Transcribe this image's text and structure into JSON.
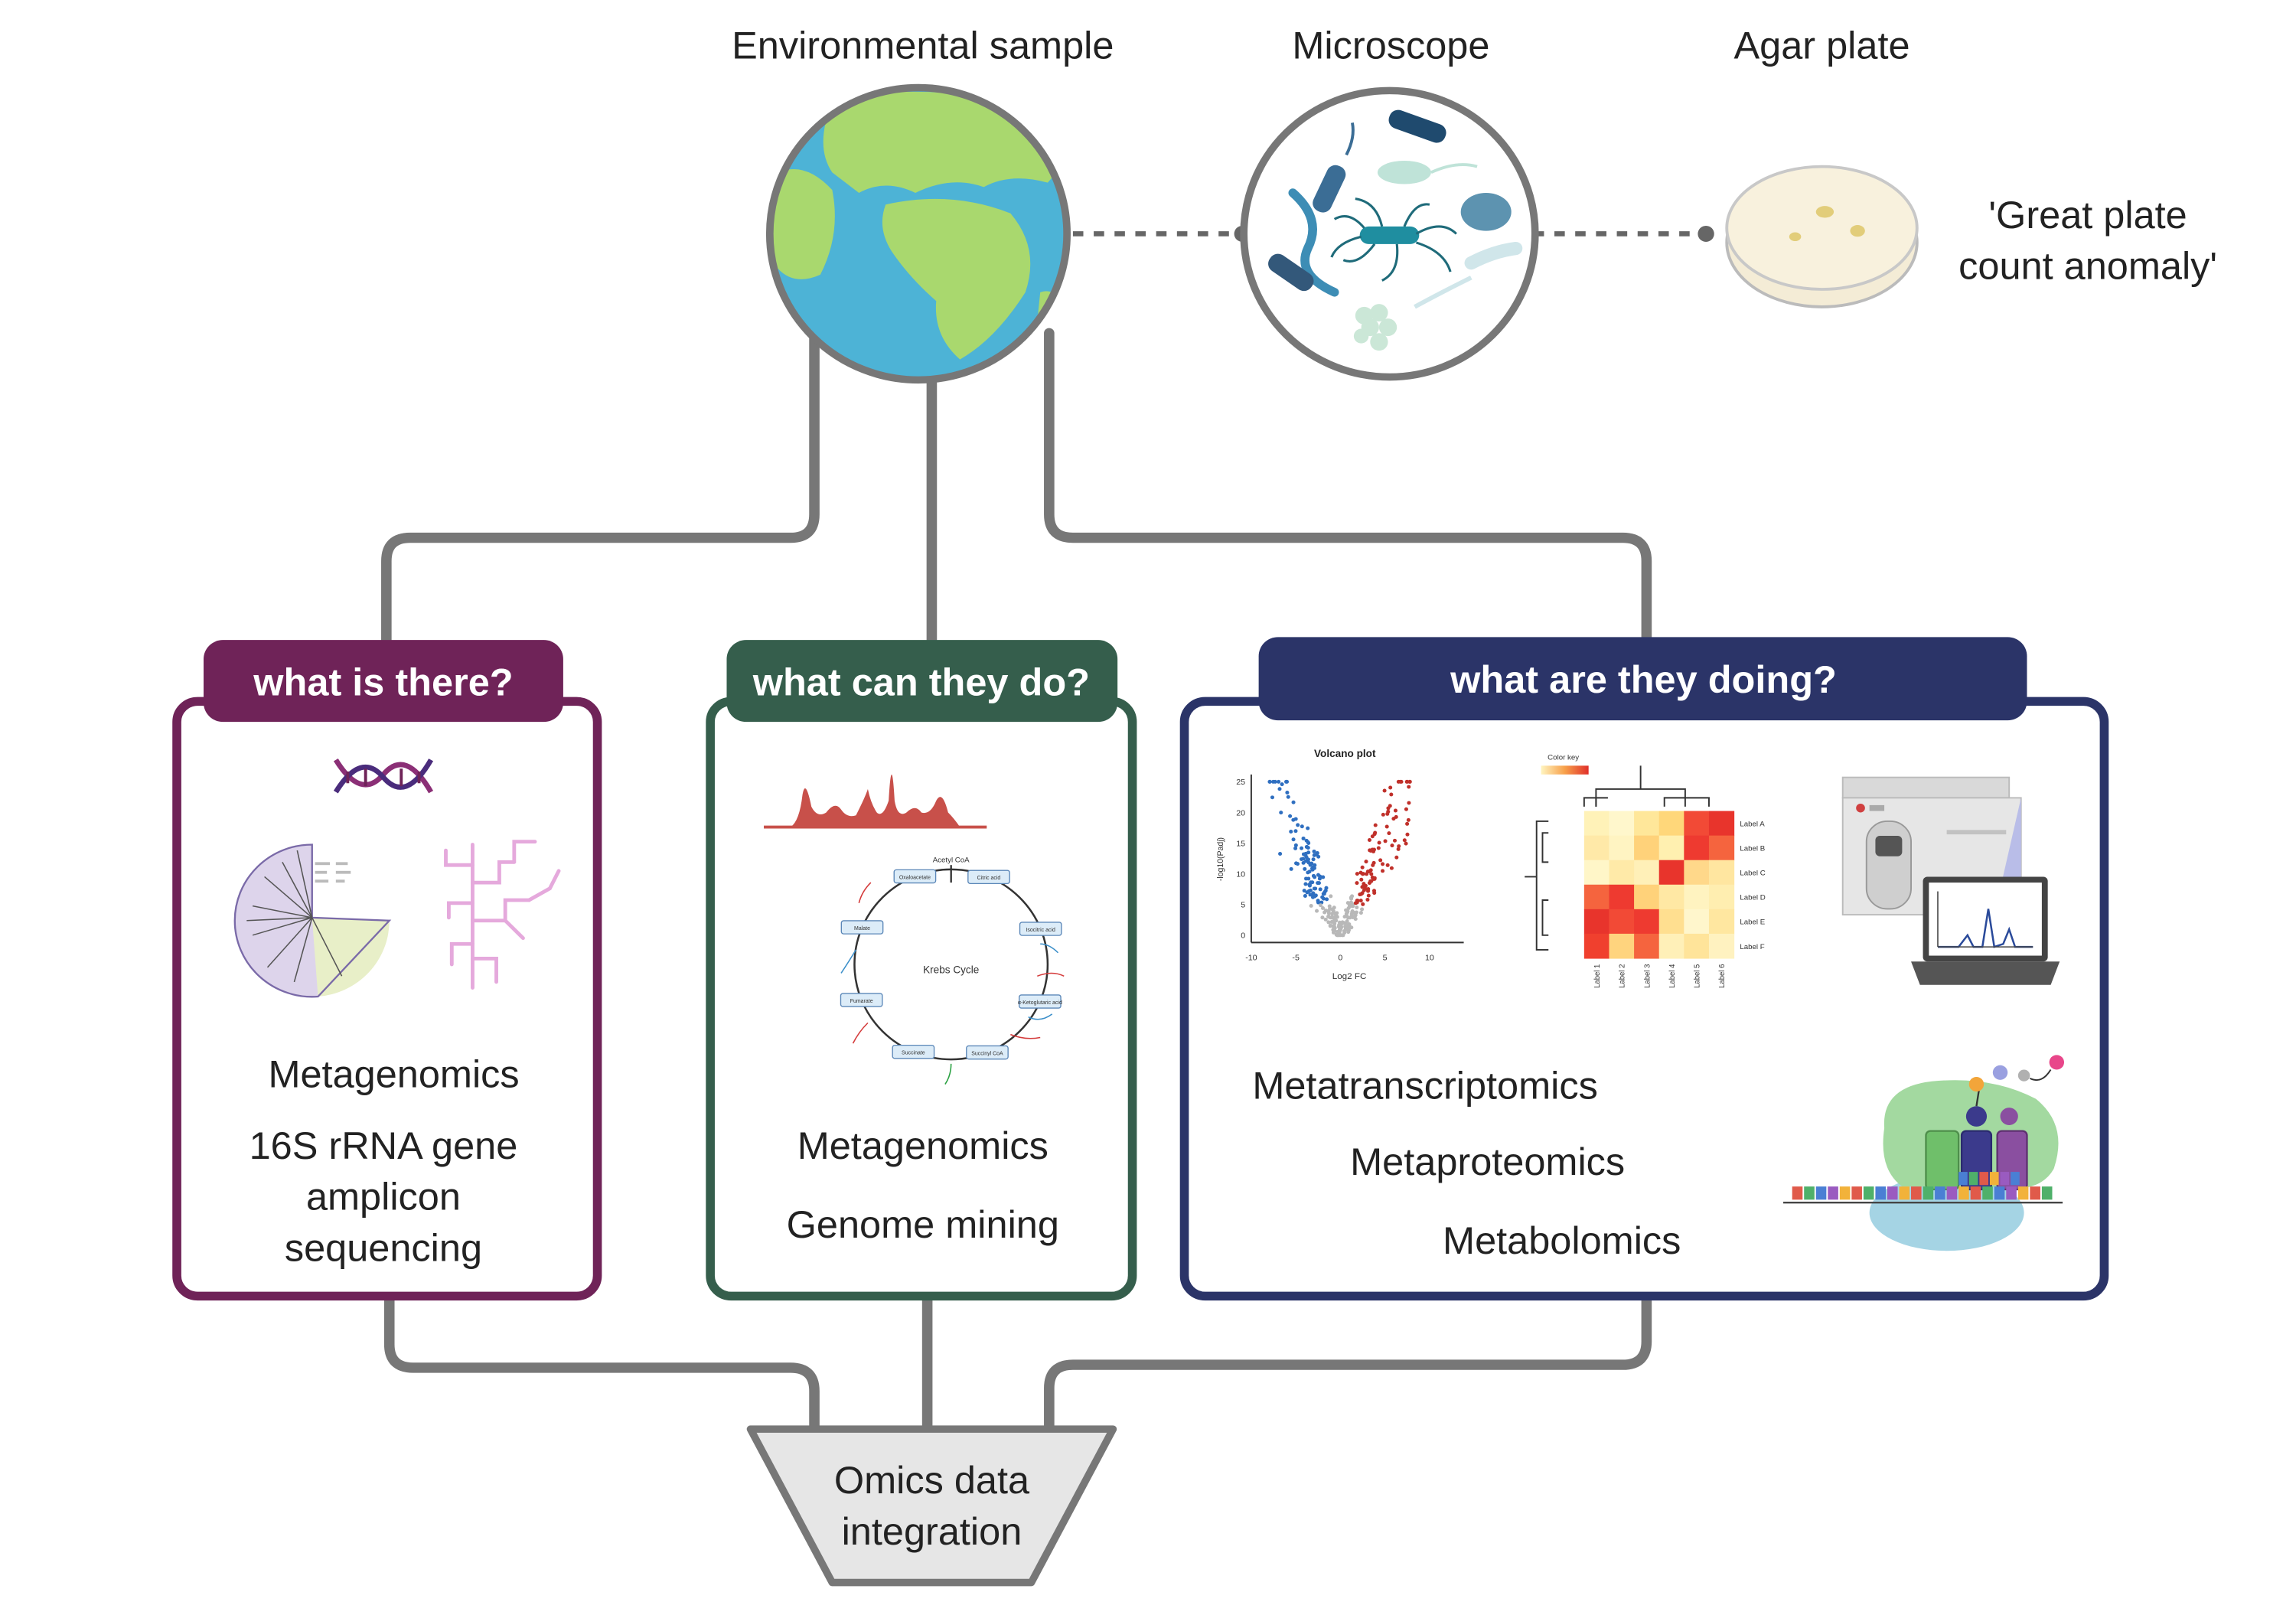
{
  "header": {
    "environmental_sample": "Environmental sample",
    "microscope": "Microscope",
    "agar_plate": "Agar plate",
    "anomaly_line1": "'Great plate",
    "anomaly_line2": "count anomaly'"
  },
  "panels": {
    "left": {
      "tab": "what is there?",
      "color": "#6f2358",
      "item1": "Metagenomics",
      "item2_line1": "16S rRNA gene",
      "item2_line2": "amplicon",
      "item2_line3": "sequencing"
    },
    "middle": {
      "tab": "what can they do?",
      "color": "#355e4c",
      "item1": "Metagenomics",
      "item2": "Genome mining",
      "krebs": {
        "center": "Krebs Cycle",
        "top": "Acetyl CoA",
        "nodes": [
          "Oxaloacetate",
          "Citric acid",
          "Isocitric acid",
          "α-Ketoglutaric acid",
          "Succinyl CoA",
          "Succinate",
          "Fumarate",
          "Malate"
        ]
      }
    },
    "right": {
      "tab": "what are they doing?",
      "color": "#2b3468",
      "item1": "Metatranscriptomics",
      "item2": "Metaproteomics",
      "item3": "Metabolomics",
      "volcano": {
        "title": "Volcano plot",
        "xlabel": "Log2 FC",
        "ylabel": "-log10(Padj)",
        "xticks": [
          "-10",
          "-5",
          "0",
          "5",
          "10"
        ],
        "yticks": [
          "0",
          "5",
          "10",
          "15",
          "20",
          "25"
        ]
      },
      "heatmap": {
        "color_key": "Color key",
        "row_labels": [
          "Label A",
          "Label B",
          "Label C",
          "Label D",
          "Label E",
          "Label F"
        ],
        "col_labels": [
          "Label 1",
          "Label 2",
          "Label 3",
          "Label 4",
          "Label 5",
          "Label 6"
        ]
      }
    }
  },
  "integration": {
    "line1": "Omics data",
    "line2": "integration"
  },
  "colors": {
    "connector": "#777777",
    "ocean": "#4db3d6",
    "land": "#a9d86e",
    "peak_red": "#c8504a"
  }
}
